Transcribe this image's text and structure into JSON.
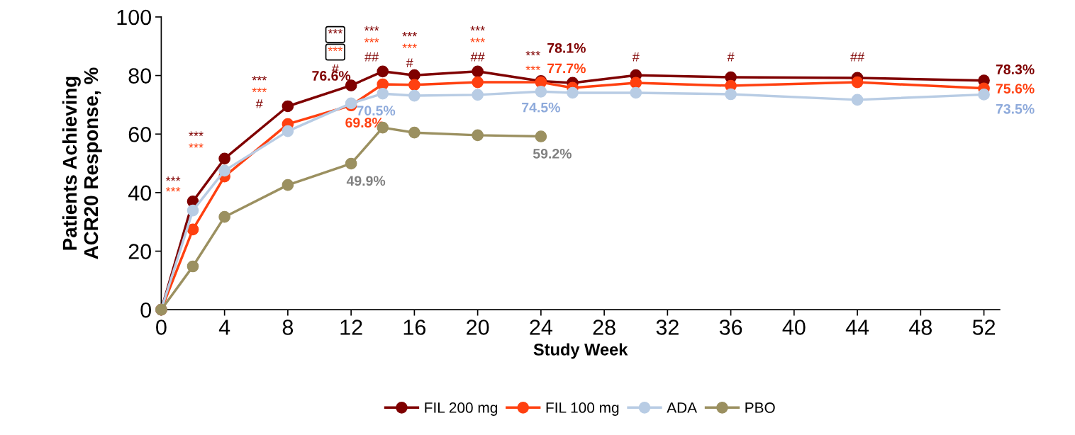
{
  "chart_data": {
    "type": "line",
    "xlabel": "Study Week",
    "ylabel": "Patients Achieving\nACR20 Response, %",
    "xlim": [
      0,
      53
    ],
    "xticks": [
      0,
      4,
      8,
      12,
      16,
      20,
      24,
      28,
      32,
      36,
      40,
      44,
      48,
      52
    ],
    "ylim": [
      0,
      100
    ],
    "yticks": [
      0,
      20,
      40,
      60,
      80,
      100
    ],
    "legend": "bottom",
    "marker": "circle",
    "line_style": "solid",
    "series": [
      {
        "name": "FIL 200 mg",
        "color": "#7f0000",
        "x": [
          0,
          2,
          4,
          8,
          12,
          14,
          16,
          20,
          24,
          26,
          30,
          36,
          44,
          52
        ],
        "values": [
          0,
          37.0,
          51.6,
          69.5,
          76.6,
          81.4,
          80.1,
          81.4,
          78.1,
          77.5,
          80.1,
          79.4,
          79.2,
          78.3
        ],
        "value_labels": [
          null,
          null,
          null,
          null,
          "76.6%",
          null,
          null,
          null,
          "78.1%",
          null,
          null,
          null,
          null,
          "78.3%"
        ]
      },
      {
        "name": "FIL 100 mg",
        "color": "#ff4010",
        "x": [
          0,
          2,
          4,
          8,
          12,
          14,
          16,
          20,
          24,
          26,
          30,
          36,
          44,
          52
        ],
        "values": [
          0,
          27.4,
          45.5,
          63.4,
          69.8,
          77.0,
          76.8,
          77.7,
          77.7,
          75.8,
          77.5,
          76.5,
          77.7,
          75.6
        ],
        "value_labels": [
          null,
          null,
          null,
          null,
          "69.8%",
          null,
          null,
          null,
          "77.7%",
          null,
          null,
          null,
          null,
          "75.6%"
        ]
      },
      {
        "name": "ADA",
        "color": "#b8cce4",
        "x": [
          0,
          2,
          4,
          8,
          12,
          14,
          16,
          20,
          24,
          26,
          30,
          36,
          44,
          52
        ],
        "values": [
          0,
          33.9,
          47.5,
          61.0,
          70.5,
          73.8,
          73.1,
          73.4,
          74.5,
          74.1,
          74.1,
          73.6,
          71.7,
          73.5
        ],
        "value_labels": [
          null,
          null,
          null,
          null,
          "70.5%",
          null,
          null,
          null,
          "74.5%",
          null,
          null,
          null,
          null,
          "73.5%"
        ]
      },
      {
        "name": "PBO",
        "color": "#9b9060",
        "x": [
          0,
          2,
          4,
          8,
          12,
          14,
          16,
          20,
          24
        ],
        "values": [
          0,
          14.8,
          31.7,
          42.6,
          49.9,
          62.2,
          60.5,
          59.6,
          59.2
        ],
        "value_labels": [
          null,
          null,
          null,
          null,
          "49.9%",
          null,
          null,
          null,
          "59.2%"
        ]
      }
    ],
    "annotations": [
      "***",
      "***",
      "***",
      "***",
      "***",
      "***",
      "#",
      "***",
      "***",
      "#",
      "***",
      "***",
      "##",
      "***",
      "***",
      "#",
      "***",
      "***",
      "##",
      "***",
      "***",
      "#",
      "#",
      "##"
    ]
  }
}
